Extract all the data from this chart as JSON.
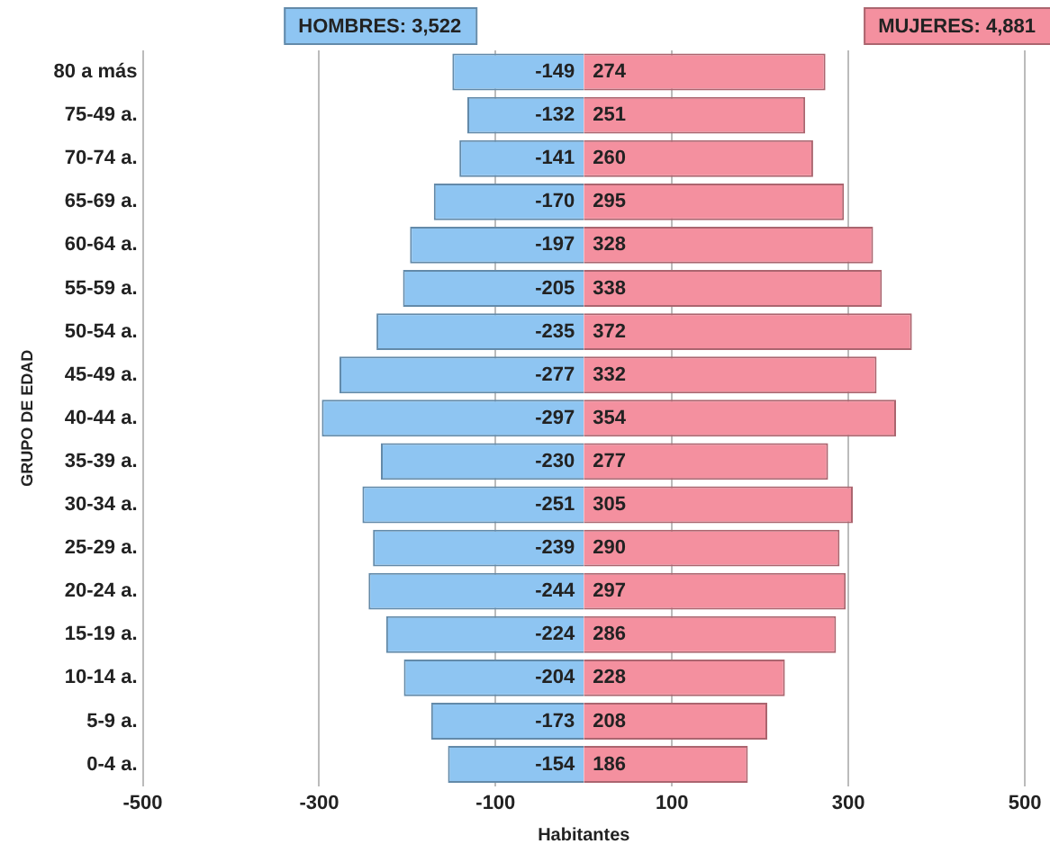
{
  "chart_data": {
    "type": "bar",
    "orientation": "horizontal",
    "stacked": true,
    "xlabel": "Habitantes",
    "ylabel": "GRUPO DE EDAD",
    "categories": [
      "80 a más",
      "75-49 a.",
      "70-74 a.",
      "65-69 a.",
      "60-64 a.",
      "55-59 a.",
      "50-54 a.",
      "45-49 a.",
      "40-44 a.",
      "35-39 a.",
      "30-34 a.",
      "25-29 a.",
      "20-24 a.",
      "15-19 a.",
      "10-14 a.",
      "5-9 a.",
      "0-4 a."
    ],
    "series": [
      {
        "name": "HOMBRES: 3,522",
        "color": "#8ec5f2",
        "values": [
          -149,
          -132,
          -141,
          -170,
          -197,
          -205,
          -235,
          -277,
          -297,
          -230,
          -251,
          -239,
          -244,
          -224,
          -204,
          -173,
          -154
        ]
      },
      {
        "name": "MUJERES: 4,881",
        "color": "#f4909f",
        "values": [
          274,
          251,
          260,
          295,
          328,
          338,
          372,
          332,
          354,
          277,
          305,
          290,
          297,
          286,
          228,
          208,
          186
        ]
      }
    ],
    "xlim": [
      -500,
      500
    ],
    "xticks": [
      -500,
      -300,
      -100,
      100,
      300,
      500
    ],
    "grid": "x",
    "data_labels": true
  }
}
